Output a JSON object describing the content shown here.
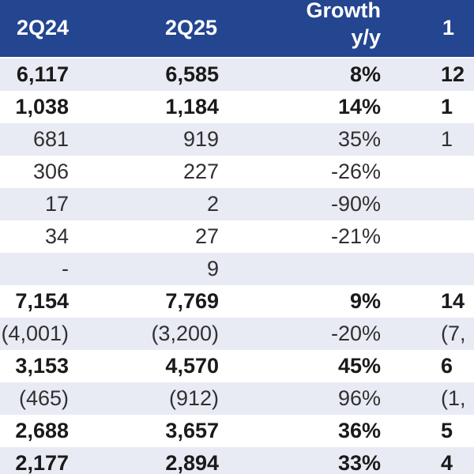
{
  "header": {
    "col1": "2Q24",
    "col2": "2Q25",
    "col3_line1": "Growth",
    "col3_line2": "y/y",
    "col4": "1"
  },
  "rows": [
    {
      "c1": "6,117",
      "c2": "6,585",
      "c3": "8%",
      "c4": "12"
    },
    {
      "c1": "1,038",
      "c2": "1,184",
      "c3": "14%",
      "c4": "1"
    },
    {
      "c1": "681",
      "c2": "919",
      "c3": "35%",
      "c4": "1"
    },
    {
      "c1": "306",
      "c2": "227",
      "c3": "-26%",
      "c4": ""
    },
    {
      "c1": "17",
      "c2": "2",
      "c3": "-90%",
      "c4": ""
    },
    {
      "c1": "34",
      "c2": "27",
      "c3": "-21%",
      "c4": ""
    },
    {
      "c1": "-",
      "c2": "9",
      "c3": "",
      "c4": ""
    },
    {
      "c1": "7,154",
      "c2": "7,769",
      "c3": "9%",
      "c4": "14"
    },
    {
      "c1": "(4,001)",
      "c2": "(3,200)",
      "c3": "-20%",
      "c4": "(7,"
    },
    {
      "c1": "3,153",
      "c2": "4,570",
      "c3": "45%",
      "c4": "6"
    },
    {
      "c1": "(465)",
      "c2": "(912)",
      "c3": "96%",
      "c4": "(1,"
    },
    {
      "c1": "2,688",
      "c2": "3,657",
      "c3": "36%",
      "c4": "5"
    },
    {
      "c1": "2,177",
      "c2": "2,894",
      "c3": "33%",
      "c4": "4"
    }
  ],
  "colors": {
    "header_bg": "#24458f",
    "header_text": "#ffffff",
    "shaded_row": "#e9ebf4"
  }
}
